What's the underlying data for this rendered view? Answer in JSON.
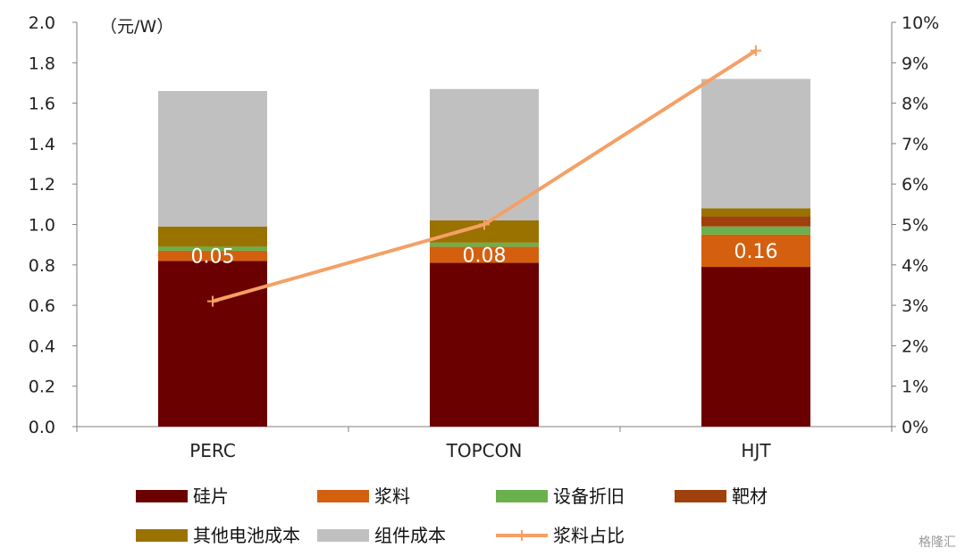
{
  "chart_data": {
    "type": "bar",
    "stacked": true,
    "categories": [
      "PERC",
      "TOPCON",
      "HJT"
    ],
    "y_unit_label": "（元/W）",
    "ylim": [
      0,
      2.0
    ],
    "y_ticks": [
      "0.0",
      "0.2",
      "0.4",
      "0.6",
      "0.8",
      "1.0",
      "1.2",
      "1.4",
      "1.6",
      "1.8",
      "2.0"
    ],
    "y2lim": [
      0,
      10
    ],
    "y2_ticks": [
      "0%",
      "1%",
      "2%",
      "3%",
      "4%",
      "5%",
      "6%",
      "7%",
      "8%",
      "9%",
      "10%"
    ],
    "series": [
      {
        "name": "硅片",
        "color": "#6b0000",
        "values": [
          0.82,
          0.81,
          0.79
        ]
      },
      {
        "name": "浆料",
        "color": "#d4600f",
        "values": [
          0.05,
          0.08,
          0.16
        ]
      },
      {
        "name": "设备折旧",
        "color": "#6ab04c",
        "values": [
          0.02,
          0.02,
          0.04
        ]
      },
      {
        "name": "靶材",
        "color": "#a0400c",
        "values": [
          0.0,
          0.0,
          0.05
        ]
      },
      {
        "name": "其他电池成本",
        "color": "#9a7200",
        "values": [
          0.1,
          0.11,
          0.04
        ]
      },
      {
        "name": "组件成本",
        "color": "#c0c0c0",
        "values": [
          0.67,
          0.65,
          0.64
        ]
      }
    ],
    "line": {
      "name": "浆料占比",
      "color": "#f4a066",
      "values": [
        3.1,
        5.0,
        9.3
      ]
    },
    "data_labels": [
      "0.05",
      "0.08",
      "0.16"
    ],
    "legend_position": "bottom"
  },
  "watermark": "格隆汇"
}
